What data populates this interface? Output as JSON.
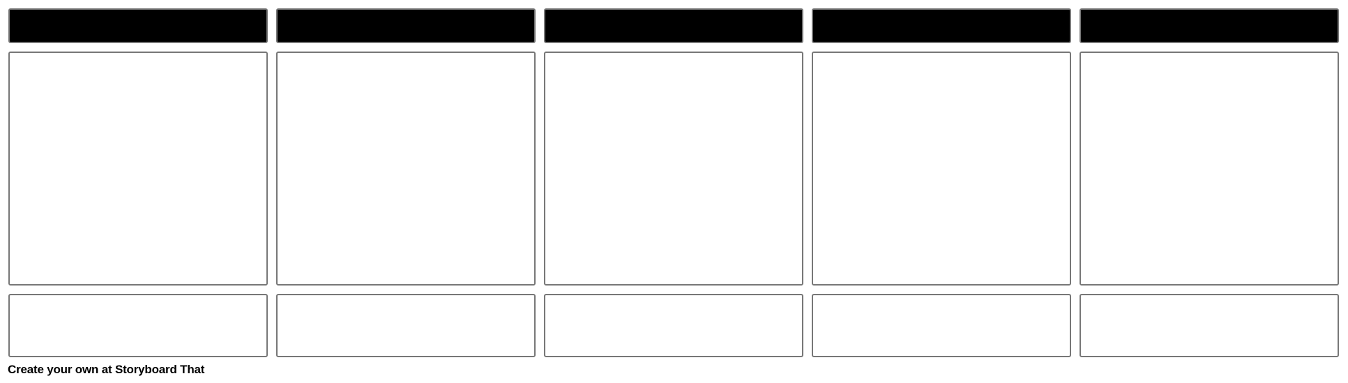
{
  "storyboard": {
    "columns": [
      {
        "title": "",
        "description": ""
      },
      {
        "title": "",
        "description": ""
      },
      {
        "title": "",
        "description": ""
      },
      {
        "title": "",
        "description": ""
      },
      {
        "title": "",
        "description": ""
      }
    ]
  },
  "footer": {
    "text": "Create your own at Storyboard That"
  },
  "colors": {
    "title_background": "#000000",
    "border": "#777777"
  }
}
